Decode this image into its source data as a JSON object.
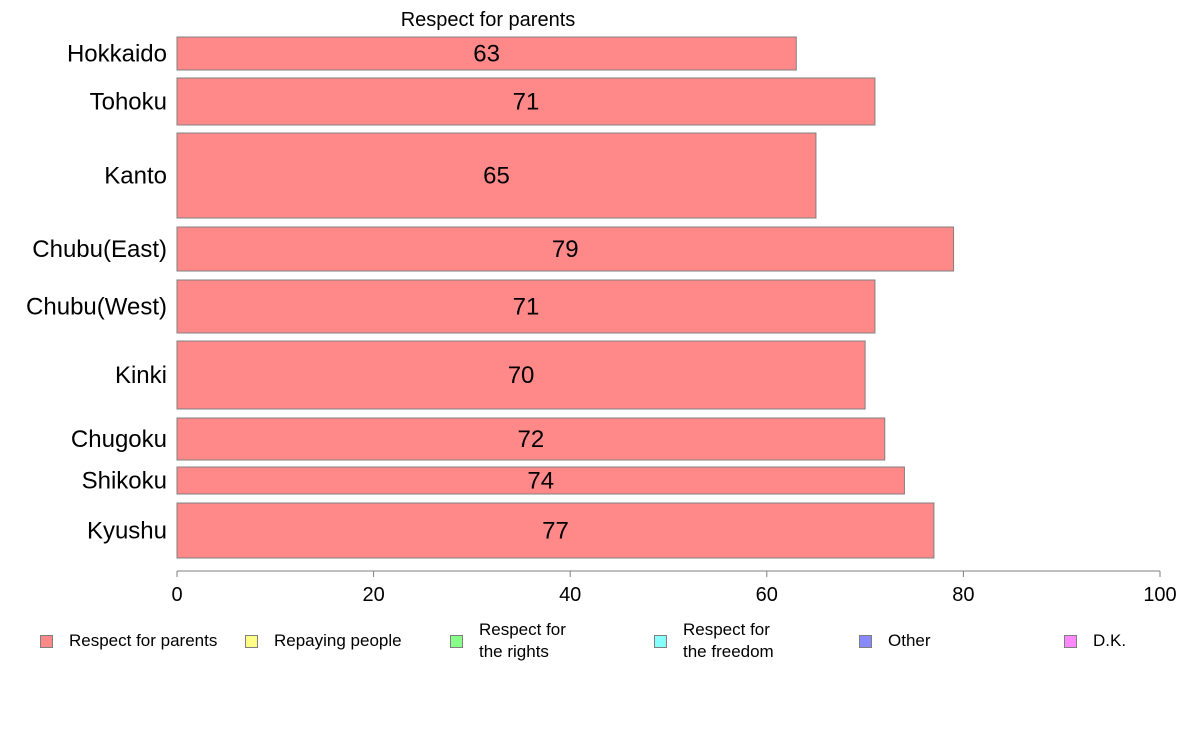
{
  "chart_data": {
    "type": "bar",
    "orientation": "horizontal",
    "title": "Respect for parents",
    "categories": [
      "Hokkaido",
      "Tohoku",
      "Kanto",
      "Chubu(East)",
      "Chubu(West)",
      "Kinki",
      "Chugoku",
      "Shikoku",
      "Kyushu"
    ],
    "series": [
      {
        "name": "Respect for parents",
        "values": [
          63,
          71,
          65,
          79,
          71,
          70,
          72,
          74,
          77
        ],
        "color": "#ff8888"
      }
    ],
    "value_labels": [
      "63",
      "71",
      "65",
      "79",
      "71",
      "70",
      "72",
      "74",
      "77"
    ],
    "xlim": [
      0,
      100
    ],
    "x_ticks": [
      0,
      20,
      40,
      60,
      80,
      100
    ],
    "x_tick_labels": [
      "0",
      "20",
      "40",
      "60",
      "80",
      "100"
    ],
    "xlabel": "",
    "ylabel": "",
    "grid": false,
    "legend_placement": "bottom",
    "legend": [
      {
        "label": "Respect for parents",
        "color": "#ff8888"
      },
      {
        "label": "Repaying people",
        "color": "#ffff88"
      },
      {
        "label": "Respect for\nthe rights",
        "color": "#88ff88"
      },
      {
        "label": "Respect for\nthe freedom",
        "color": "#88ffff"
      },
      {
        "label": "Other",
        "color": "#8888ff"
      },
      {
        "label": "D.K.",
        "color": "#ff88ff"
      }
    ]
  }
}
